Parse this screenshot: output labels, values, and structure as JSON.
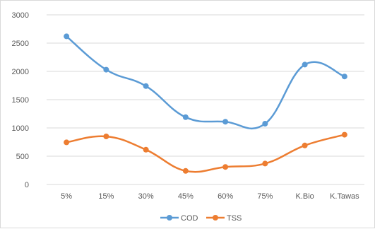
{
  "chart_data": {
    "type": "line",
    "categories": [
      "5%",
      "15%",
      "30%",
      "45%",
      "60%",
      "75%",
      "K.Bio",
      "K.Tawas"
    ],
    "ylim": [
      0,
      3000
    ],
    "yticks": [
      0,
      500,
      1000,
      1500,
      2000,
      2500,
      3000
    ],
    "grid": true,
    "smooth": true,
    "legend_position": "bottom",
    "series": [
      {
        "name": "COD",
        "color": "#5B9BD5",
        "values": [
          2620,
          2030,
          1740,
          1190,
          1110,
          1075,
          2120,
          1910
        ]
      },
      {
        "name": "TSS",
        "color": "#ED7D31",
        "values": [
          745,
          850,
          615,
          240,
          310,
          370,
          690,
          880
        ]
      }
    ]
  }
}
